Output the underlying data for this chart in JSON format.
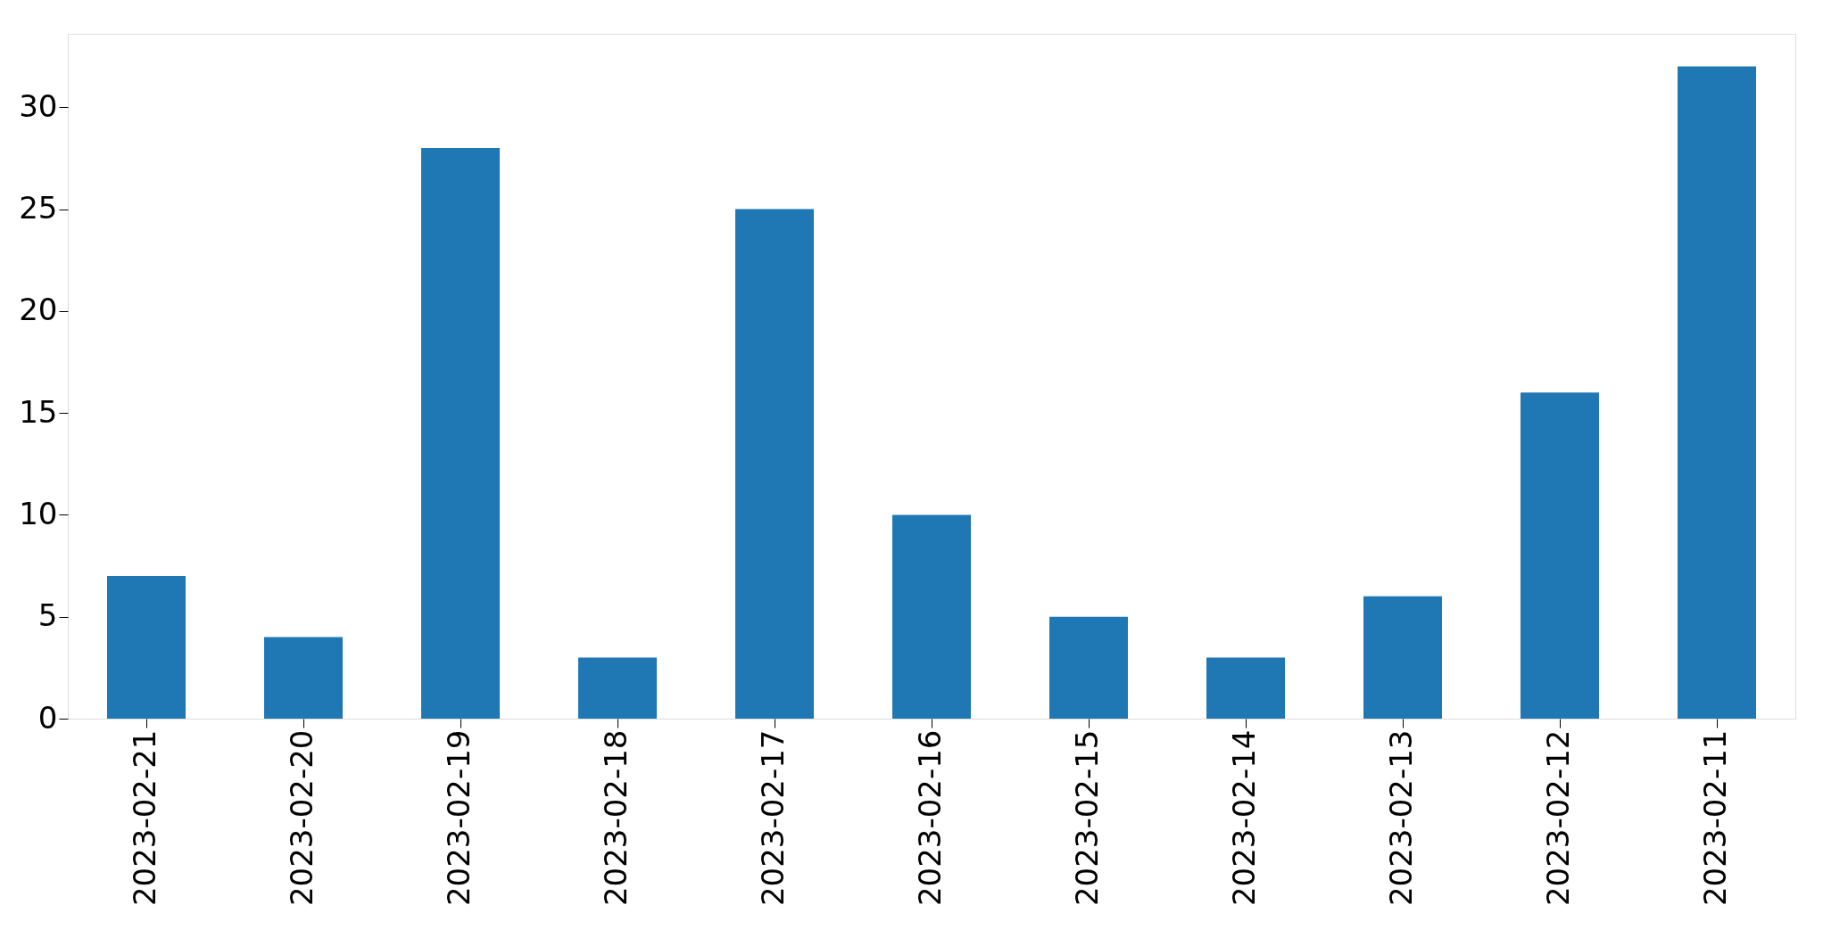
{
  "chart_data": {
    "type": "bar",
    "categories": [
      "2023-02-21",
      "2023-02-20",
      "2023-02-19",
      "2023-02-18",
      "2023-02-17",
      "2023-02-16",
      "2023-02-15",
      "2023-02-14",
      "2023-02-13",
      "2023-02-12",
      "2023-02-11"
    ],
    "series": [
      {
        "color": "#1f77b4",
        "values": [
          7,
          4,
          28,
          3,
          25,
          10,
          5,
          3,
          6,
          16,
          32
        ]
      }
    ],
    "ylim": [
      0,
      33.6
    ],
    "yticks": [
      0,
      5,
      10,
      15,
      20,
      25,
      30
    ],
    "grid": false,
    "legend": false
  }
}
